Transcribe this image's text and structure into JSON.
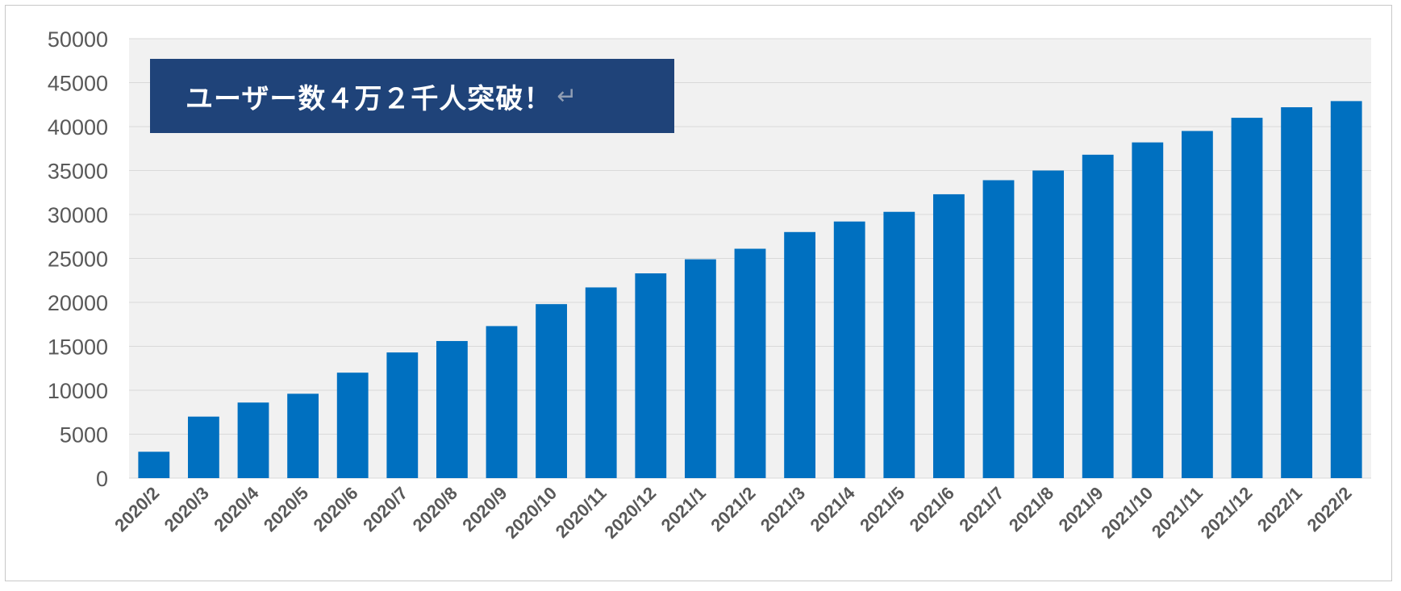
{
  "chart_data": {
    "type": "bar",
    "title": "",
    "xlabel": "",
    "ylabel": "",
    "ylim": [
      0,
      50000
    ],
    "yticks": [
      0,
      5000,
      10000,
      15000,
      20000,
      25000,
      30000,
      35000,
      40000,
      45000,
      50000
    ],
    "grid": true,
    "categories": [
      "2020/2",
      "2020/3",
      "2020/4",
      "2020/5",
      "2020/6",
      "2020/7",
      "2020/8",
      "2020/9",
      "2020/10",
      "2020/11",
      "2020/12",
      "2021/1",
      "2021/2",
      "2021/3",
      "2021/4",
      "2021/5",
      "2021/6",
      "2021/7",
      "2021/8",
      "2021/9",
      "2021/10",
      "2021/11",
      "2021/12",
      "2022/1",
      "2022/2"
    ],
    "values": [
      3000,
      7000,
      8600,
      9600,
      12000,
      14300,
      15600,
      17300,
      19800,
      21700,
      23300,
      24900,
      26100,
      28000,
      29200,
      30300,
      32300,
      33900,
      35000,
      36800,
      38200,
      39500,
      41000,
      42200,
      42900
    ],
    "bar_color": "#0070c0",
    "annotation": "ユーザー数４万２千人突破！",
    "annotation_mark": "↵",
    "annotation_bg": "#1f4379"
  }
}
